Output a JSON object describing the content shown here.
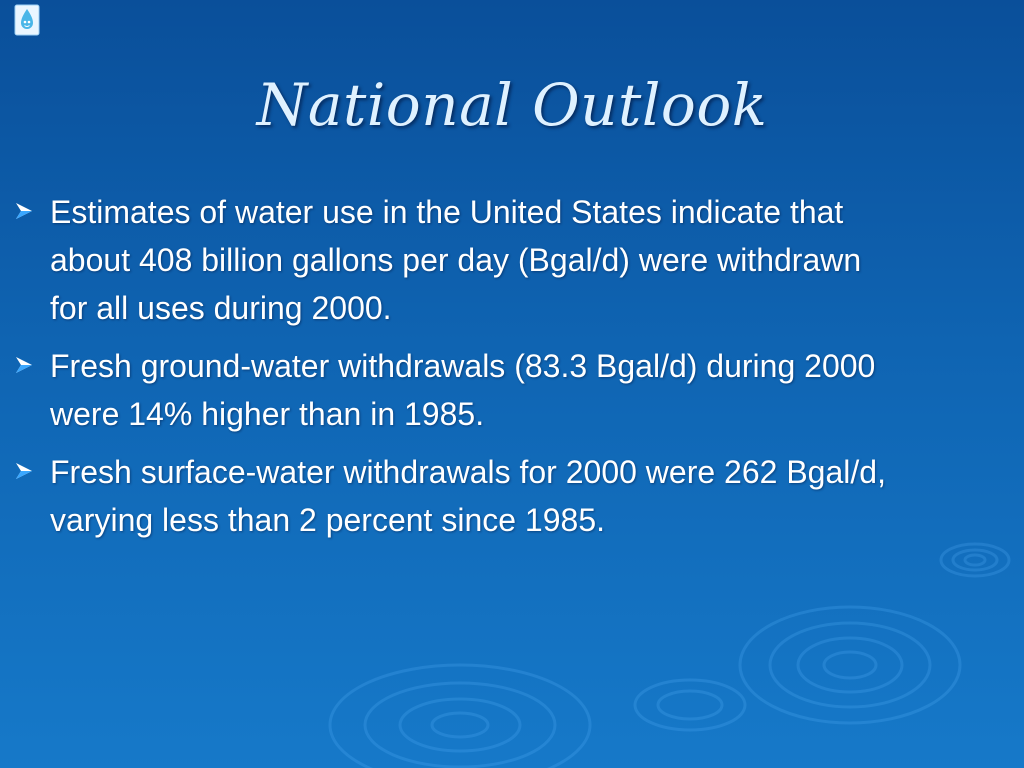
{
  "slide": {
    "title": "National Outlook",
    "bullets": [
      {
        "text": "Estimates of water use in the United States indicate that about 408 billion gallons per day (Bgal/d) were withdrawn for all uses during 2000."
      },
      {
        "text": "Fresh ground-water withdrawals (83.3 Bgal/d) during 2000 were 14% higher than in 1985."
      },
      {
        "text": "Fresh surface-water withdrawals for 2000 were 262 Bgal/d, varying less than 2 percent since 1985."
      }
    ]
  },
  "icons": {
    "logo": "water-drop-logo-icon",
    "bullet": "arrowhead-bullet-icon",
    "background": "water-ripple-icon"
  },
  "colors": {
    "background_top": "#0a4f9a",
    "background_bottom": "#1679c9",
    "title": "#dff1ff",
    "body_text": "#ffffff",
    "bullet_fill": "#ffffff",
    "bullet_accent": "#3aa7ff"
  }
}
